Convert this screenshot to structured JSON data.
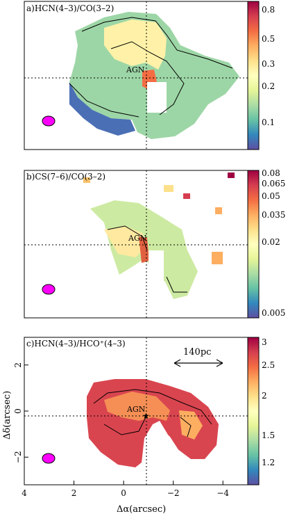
{
  "chart_data": [
    {
      "type": "heatmap",
      "panel_label": "a)HCN(4–3)/CO(3–2)",
      "annotation": "AGN",
      "colorbar_ticks": [
        "0.8",
        "0.5",
        "0.3",
        "0.2",
        "0.1"
      ],
      "colorbar_values": [
        0.8,
        0.5,
        0.3,
        0.2,
        0.1
      ],
      "colorbar_range": [
        0.05,
        0.95
      ],
      "colorbar_scale": "log"
    },
    {
      "type": "heatmap",
      "panel_label": "b)CS(7–6)/CO(3–2)",
      "annotation": "AGN",
      "colorbar_ticks": [
        "0.08",
        "0.065",
        "0.05",
        "0.035",
        "0.02",
        "0.005"
      ],
      "colorbar_values": [
        0.08,
        0.065,
        0.05,
        0.035,
        0.02,
        0.005
      ],
      "colorbar_range": [
        0.005,
        0.082
      ],
      "colorbar_scale": "linear"
    },
    {
      "type": "heatmap",
      "panel_label": "c)HCN(4–3)/HCO⁺(4–3)",
      "annotation": "AGN",
      "scalebar_label": "140pc",
      "colorbar_ticks": [
        "3",
        "2.5",
        "2",
        "1.5",
        "1.2"
      ],
      "colorbar_values": [
        3,
        2.5,
        2,
        1.5,
        1.2
      ],
      "colorbar_range": [
        1.0,
        3.1
      ],
      "colorbar_scale": "log",
      "xlabel": "Δα(arcsec)",
      "ylabel": "Δδ(arcsec)",
      "x_ticks": [
        "4",
        "2",
        "0",
        "−2",
        "−4"
      ],
      "x_tick_values": [
        4,
        2,
        0,
        -2,
        -4
      ],
      "y_ticks": [
        "2",
        "0",
        "−2"
      ],
      "y_tick_values": [
        2,
        0,
        -2
      ],
      "xlim": [
        4,
        -5
      ],
      "ylim": [
        -3.2,
        3.2
      ]
    }
  ],
  "colors": {
    "beam": "#ff00ff",
    "colormap": [
      "#5e4fa2",
      "#3288bd",
      "#66c2a5",
      "#abdda4",
      "#e6f598",
      "#ffffbf",
      "#fee08b",
      "#fdae61",
      "#f46d43",
      "#d53e4f",
      "#9e0142"
    ]
  }
}
